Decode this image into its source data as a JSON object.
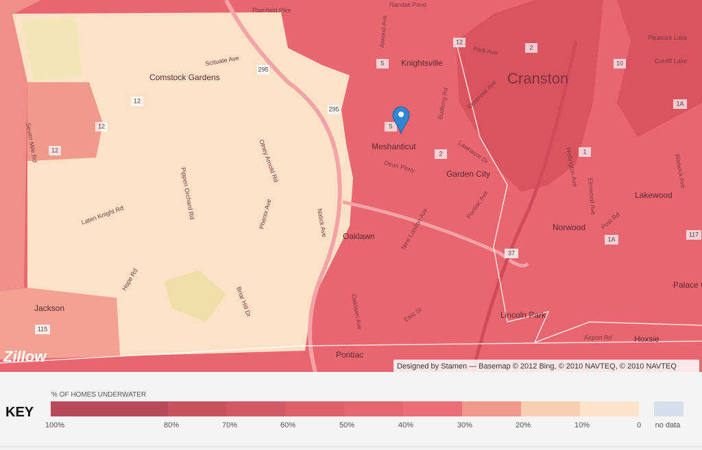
{
  "map": {
    "places": [
      "Comstock Gardens",
      "Knightsville",
      "Cranston",
      "Meshanticut",
      "Garden City",
      "Oaklawn",
      "Norwood",
      "Lakewood",
      "Lincoln Park",
      "Hoxsie",
      "Jackson",
      "Pontiac",
      "Randall Pond",
      "Pleasure Lake",
      "Cunliff Lake",
      "Palace Garden"
    ],
    "roads": [
      "Plainfield Pike",
      "Scituate Ave",
      "Park Ave",
      "Reservoir Ave",
      "Budlong Rd",
      "Atwood Ave",
      "Dean Pkwy",
      "Lawnacre Dr",
      "New London Ave",
      "Pontiac Ave",
      "Post Rd",
      "Warwick Ave",
      "Elmwood Ave",
      "Wellington Ave",
      "Olney Arnold Rd",
      "Pippen Orchard Rd",
      "Phenix Ave",
      "Natick Ave",
      "Laten Knight Rd",
      "Hope Rd",
      "Oaklawn Ave",
      "East St",
      "Airport Rd",
      "Briar Hill Dr",
      "Seven Mile Rd"
    ],
    "shields": [
      "295",
      "295",
      "12",
      "12",
      "12",
      "5",
      "5",
      "12",
      "2",
      "2",
      "10",
      "1",
      "1A",
      "1A",
      "117",
      "37",
      "115"
    ],
    "attribution": "Designed by Stamen — Basemap © 2012 Bing, © 2010 NAVTEQ, © 2010 NAVTEQ",
    "logo": "Zillow"
  },
  "key": {
    "title": "KEY",
    "subtitle": "% OF HOMES UNDERWATER",
    "ticks": [
      "100%",
      "80%",
      "70%",
      "60%",
      "50%",
      "40%",
      "30%",
      "20%",
      "10%",
      "0"
    ],
    "colors": [
      "#b94a5b",
      "#c9525f",
      "#d25964",
      "#dc606a",
      "#e2676f",
      "#e96e75",
      "#f1998d",
      "#f8cfae",
      "#fbe4c9"
    ],
    "no_data": "no data",
    "no_data_color": "#d6e0ea"
  }
}
